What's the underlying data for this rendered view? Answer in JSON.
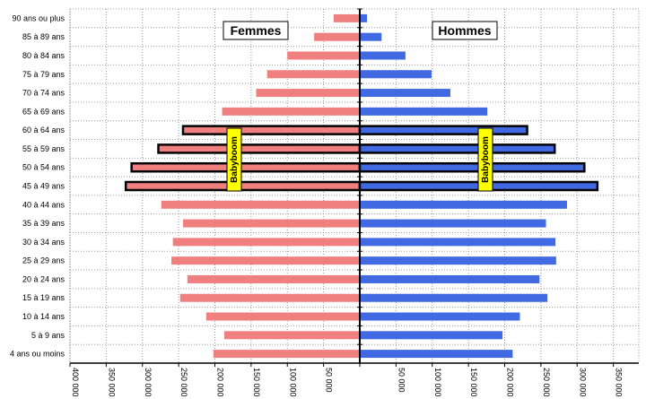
{
  "chart_data": {
    "type": "bar",
    "orientation": "horizontal-population-pyramid",
    "categories": [
      "4 ans ou moins",
      "5 à 9 ans",
      "10 à 14 ans",
      "15 à 19 ans",
      "20 à 24 ans",
      "25 à 29 ans",
      "30 à 34 ans",
      "35 à 39 ans",
      "40 à 44 ans",
      "45 à 49 ans",
      "50 à 54 ans",
      "55 à 59 ans",
      "60 à 64 ans",
      "65 à 69 ans",
      "70 à 74 ans",
      "75 à 79 ans",
      "80 à 84 ans",
      "85 à 89 ans",
      "90 ans ou plus"
    ],
    "series": [
      {
        "name": "Femmes",
        "color": "#f08080",
        "values": [
          202000,
          187000,
          212000,
          248000,
          238000,
          260000,
          258000,
          244000,
          274000,
          323000,
          315000,
          278000,
          244000,
          190000,
          143000,
          128000,
          100000,
          63000,
          36000
        ]
      },
      {
        "name": "Hommes",
        "color": "#4169e1",
        "values": [
          211000,
          197000,
          221000,
          259000,
          248000,
          271000,
          270000,
          257000,
          286000,
          328000,
          310000,
          269000,
          231000,
          176000,
          125000,
          99000,
          63000,
          30000,
          10000
        ]
      }
    ],
    "highlighted_categories": [
      "45 à 49 ans",
      "50 à 54 ans",
      "55 à 59 ans",
      "60 à 64 ans"
    ],
    "xlim": [
      -400000,
      400000
    ],
    "x_tick_values": [
      -400000,
      -350000,
      -300000,
      -250000,
      -200000,
      -150000,
      -100000,
      -50000,
      50000,
      100000,
      150000,
      200000,
      250000,
      300000,
      350000
    ],
    "x_tick_labels": [
      "400 000",
      "350 000",
      "300 000",
      "250 000",
      "200 000",
      "150 000",
      "100 000",
      "50 000",
      "50 000",
      "100 000",
      "150 000",
      "200 000",
      "250 000",
      "300 000",
      "350 000"
    ],
    "legend": {
      "left": "Femmes",
      "right": "Hommes"
    },
    "annotations": [
      {
        "text": "Babyboom"
      },
      {
        "text": "Babyboom"
      }
    ],
    "grid": true,
    "colors": {
      "femmes": "#f08080",
      "hommes": "#4169e1",
      "annotation_bg": "#ffff00",
      "grid": "#999999",
      "axis": "#000000"
    }
  }
}
